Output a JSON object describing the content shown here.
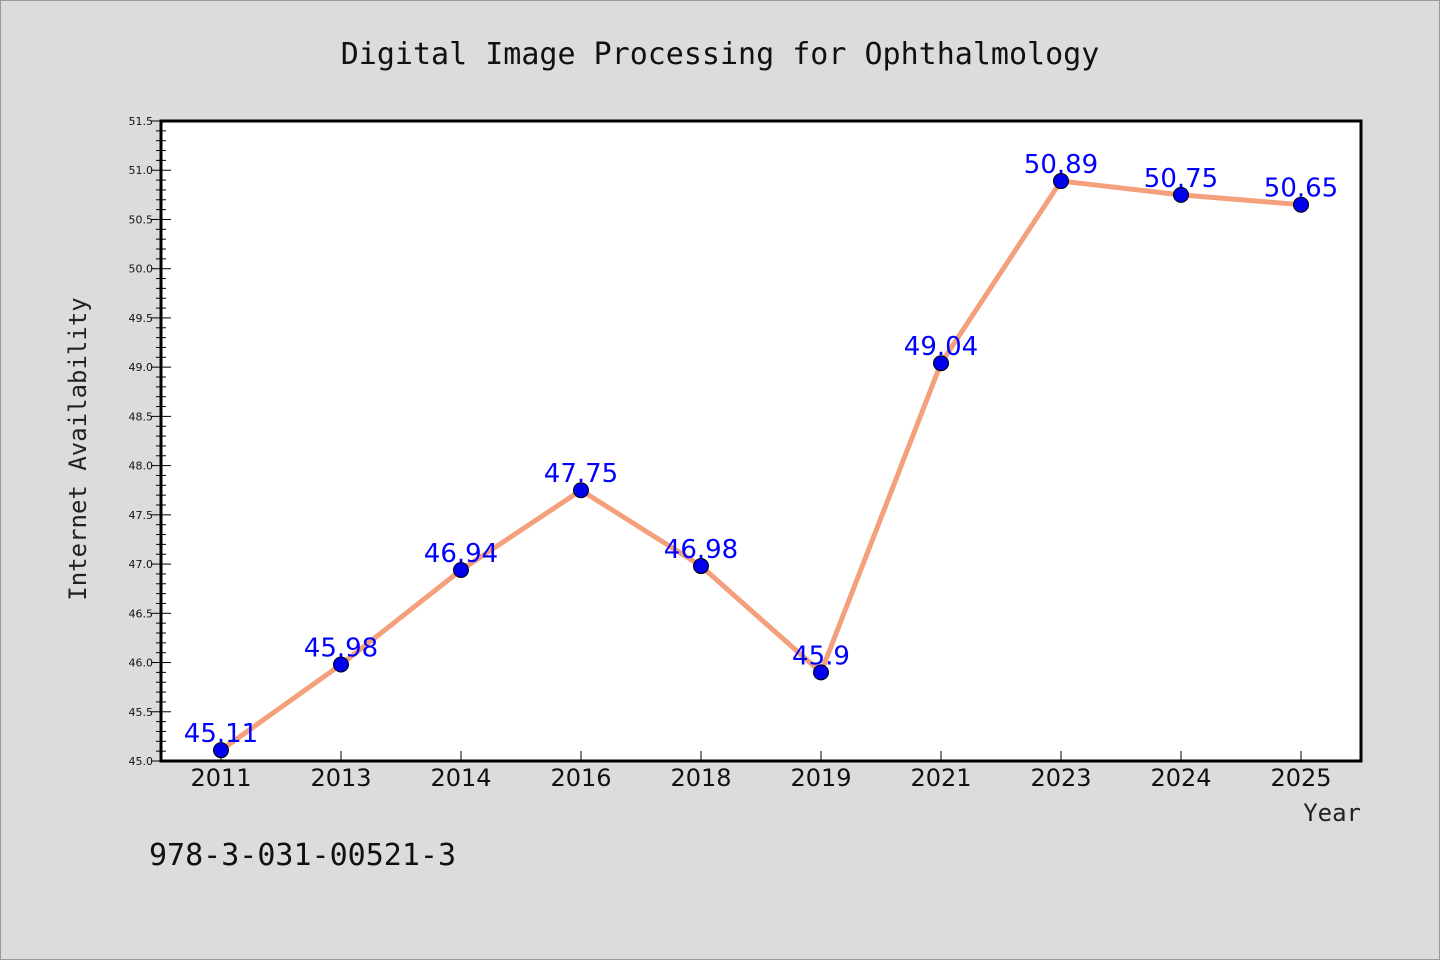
{
  "chart_data": {
    "type": "line",
    "title": "Digital Image Processing for Ophthalmology",
    "xlabel": "Year",
    "ylabel": "Internet Availability",
    "categories": [
      "2011",
      "2013",
      "2014",
      "2016",
      "2018",
      "2019",
      "2021",
      "2023",
      "2024",
      "2025"
    ],
    "series": [
      {
        "values": [
          45.11,
          45.98,
          46.94,
          47.75,
          46.98,
          45.9,
          49.04,
          50.89,
          50.75,
          50.65
        ],
        "labels": [
          "45.11",
          "45.98",
          "46.94",
          "47.75",
          "46.98",
          "45.9",
          "49.04",
          "50.89",
          "50.75",
          "50.65"
        ]
      }
    ],
    "ylim": [
      45.0,
      51.5
    ],
    "y_ticks": [
      "45.0",
      "45.5",
      "46.0",
      "46.5",
      "47.0",
      "47.5",
      "48.0",
      "48.5",
      "49.0",
      "49.5",
      "50.0",
      "50.5",
      "51.0",
      "51.5"
    ],
    "grid": false,
    "colors": {
      "line": "#f4a07c",
      "marker": "#0000ee",
      "label": "#0000ff",
      "background": "#dcdcdc",
      "plot_background": "#ffffff"
    }
  },
  "footer_text": "978-3-031-00521-3"
}
